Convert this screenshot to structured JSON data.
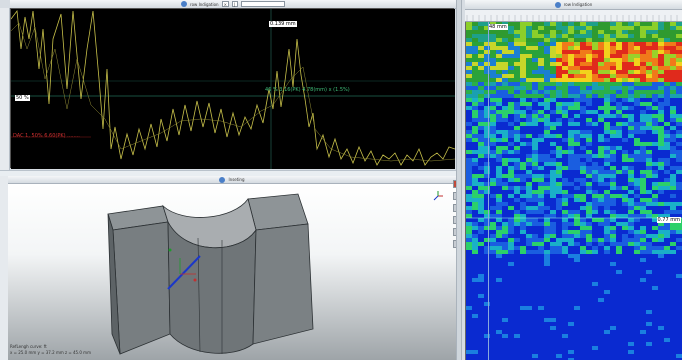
{
  "top_bar": {
    "title": "row Indigation",
    "field_value": ""
  },
  "scope": {
    "peak_label": "0.139 mm",
    "level_label": "50 %",
    "gate_label": "46 % 3.16(PK) 4.78(mm) x (1.5%)",
    "dac_label": "DAC 1, 50% 6.60(PK) ........",
    "trace_color": "#c8c14a",
    "bg_color": "#000000"
  },
  "view3d": {
    "title": "Inseting",
    "coord_line1": "RefLengh curve: ft",
    "coord_line2": "x = 25.0 mm  y = 37.2 mm  z = 45.0 mm"
  },
  "heatmap": {
    "title": "row Indigation",
    "header_label": "48 mm",
    "marker_label": "0.77 mm",
    "top_bar_color": "#d5dde4"
  },
  "tools": {
    "close_icon": "close-icon",
    "axis_icon": "axis-gizmo-icon"
  }
}
